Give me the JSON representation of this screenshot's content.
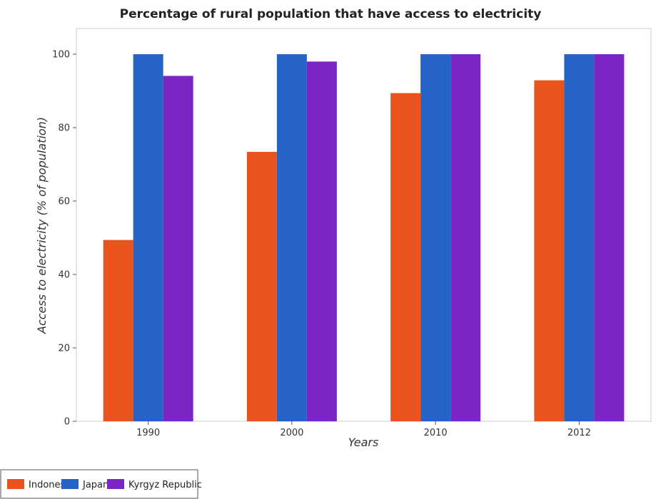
{
  "chart_data": {
    "type": "bar",
    "title": "Percentage of rural population that have access to electricity",
    "xlabel": "Years",
    "ylabel": "Access to electricity (% of population)",
    "categories": [
      "1990",
      "2000",
      "2010",
      "2012"
    ],
    "series": [
      {
        "name": "Indonesia",
        "color": "#e8541c",
        "values": [
          49.4,
          73.4,
          89.4,
          92.9
        ]
      },
      {
        "name": "Japan",
        "color": "#2563c6",
        "values": [
          100,
          100,
          100,
          100
        ]
      },
      {
        "name": "Kyrgyz Republic",
        "color": "#7b26c4",
        "values": [
          94.1,
          98.0,
          100,
          100
        ]
      }
    ],
    "ylim": [
      0,
      107
    ],
    "yticks": [
      0,
      20,
      40,
      60,
      80,
      100
    ],
    "grid": false,
    "legend_position": "bottom-left"
  }
}
